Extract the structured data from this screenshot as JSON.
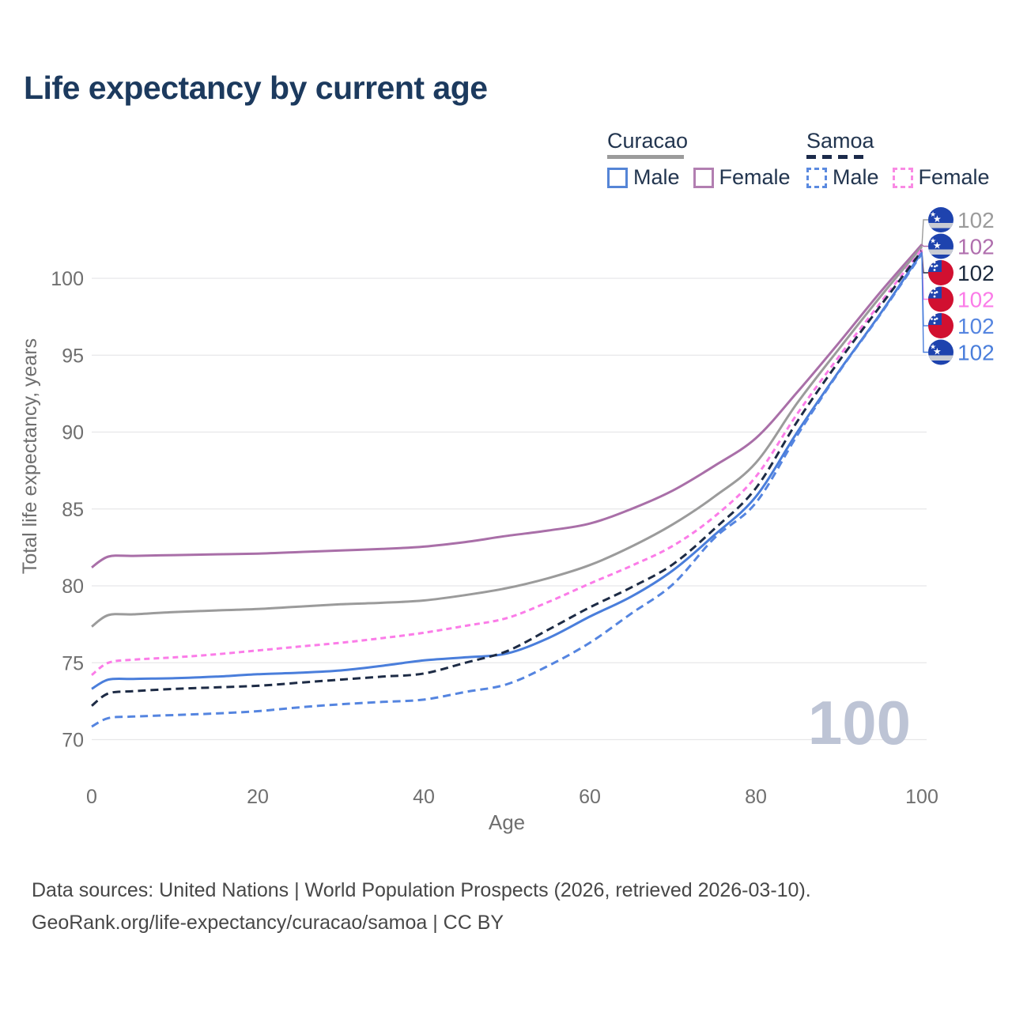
{
  "title": "Life expectancy by current age",
  "legend": {
    "groups": [
      {
        "id": "curacao",
        "label": "Curacao",
        "line_style": "solid",
        "line_color": "#9b9b9b",
        "items": [
          {
            "id": "curacao-male",
            "label": "Male",
            "color": "#5585d6",
            "style": "solid"
          },
          {
            "id": "curacao-female",
            "label": "Female",
            "color": "#b27fb1",
            "style": "solid"
          }
        ]
      },
      {
        "id": "samoa",
        "label": "Samoa",
        "line_style": "dashed",
        "line_color": "#1b2a4a",
        "items": [
          {
            "id": "samoa-male",
            "label": "Male",
            "color": "#5b8ae0",
            "style": "dashed"
          },
          {
            "id": "samoa-female",
            "label": "Female",
            "color": "#f98ae4",
            "style": "dashed"
          }
        ]
      }
    ]
  },
  "chart_data": {
    "type": "line",
    "title": "Life expectancy by current age",
    "xlabel": "Age",
    "ylabel": "Total life expectancy, years",
    "xlim": [
      0,
      100
    ],
    "ylim": [
      70,
      100
    ],
    "x_ticks": [
      0,
      20,
      40,
      60,
      80,
      100
    ],
    "y_ticks": [
      70,
      75,
      80,
      85,
      90,
      95,
      100
    ],
    "grid": "horizontal",
    "watermark": "100",
    "ages": [
      0,
      2,
      5,
      10,
      15,
      20,
      25,
      30,
      35,
      40,
      45,
      50,
      55,
      60,
      65,
      70,
      75,
      80,
      85,
      90,
      95,
      100
    ],
    "series": [
      {
        "id": "curacao-female",
        "name": "Curacao Female",
        "color": "#a96fa8",
        "dash": "solid",
        "flag": "curacao",
        "values": [
          81.2,
          81.9,
          81.95,
          82.0,
          82.05,
          82.1,
          82.2,
          82.3,
          82.4,
          82.55,
          82.85,
          83.25,
          83.6,
          84.05,
          85.0,
          86.2,
          87.8,
          89.6,
          92.6,
          95.8,
          99.1,
          102.2
        ]
      },
      {
        "id": "curacao-combined",
        "name": "Curacao",
        "color": "#9b9b9b",
        "dash": "solid",
        "flag": "curacao",
        "values": [
          77.35,
          78.1,
          78.15,
          78.3,
          78.4,
          78.5,
          78.65,
          78.8,
          78.9,
          79.05,
          79.4,
          79.85,
          80.5,
          81.35,
          82.55,
          84.0,
          85.8,
          88.0,
          91.9,
          95.4,
          98.8,
          102.05
        ]
      },
      {
        "id": "curacao-male",
        "name": "Curacao Male",
        "color": "#4a7edb",
        "dash": "solid",
        "flag": "curacao",
        "values": [
          73.3,
          73.9,
          73.95,
          74.0,
          74.1,
          74.25,
          74.35,
          74.5,
          74.8,
          75.15,
          75.35,
          75.6,
          76.6,
          78.0,
          79.3,
          81.0,
          83.3,
          85.8,
          90.0,
          93.95,
          97.7,
          101.7
        ]
      },
      {
        "id": "samoa-female",
        "name": "Samoa Female",
        "color": "#fb7ce8",
        "dash": "dashed",
        "flag": "samoa",
        "values": [
          74.2,
          75.0,
          75.2,
          75.35,
          75.55,
          75.8,
          76.05,
          76.3,
          76.6,
          76.95,
          77.4,
          77.9,
          78.95,
          80.15,
          81.3,
          82.6,
          84.5,
          87.1,
          91.2,
          94.9,
          98.4,
          101.9
        ]
      },
      {
        "id": "samoa-combined",
        "name": "Samoa",
        "color": "#1d2b45",
        "dash": "dashed",
        "flag": "samoa",
        "values": [
          72.2,
          73.0,
          73.15,
          73.3,
          73.4,
          73.5,
          73.7,
          73.9,
          74.1,
          74.3,
          75.0,
          75.75,
          77.15,
          78.6,
          79.9,
          81.4,
          83.7,
          86.35,
          90.7,
          94.6,
          98.2,
          101.8
        ]
      },
      {
        "id": "samoa-male",
        "name": "Samoa Male",
        "color": "#5585e0",
        "dash": "dashed",
        "flag": "samoa",
        "values": [
          70.85,
          71.4,
          71.5,
          71.6,
          71.7,
          71.85,
          72.1,
          72.3,
          72.45,
          72.6,
          73.1,
          73.6,
          74.8,
          76.3,
          78.2,
          80.1,
          83.1,
          85.4,
          89.8,
          93.9,
          97.65,
          101.6
        ]
      }
    ],
    "end_labels": [
      {
        "series": "curacao-combined",
        "flag": "curacao",
        "text": "102",
        "color": "#9b9b9b"
      },
      {
        "series": "curacao-female",
        "flag": "curacao",
        "text": "102",
        "color": "#b06fae"
      },
      {
        "series": "samoa-combined",
        "flag": "samoa",
        "text": "102",
        "color": "#1d2b3f"
      },
      {
        "series": "samoa-female",
        "flag": "samoa",
        "text": "102",
        "color": "#fb7ce8"
      },
      {
        "series": "samoa-male",
        "flag": "samoa",
        "text": "102",
        "color": "#5585e0"
      },
      {
        "series": "curacao-male",
        "flag": "curacao",
        "text": "102",
        "color": "#4a7edb"
      }
    ],
    "flag_colors": {
      "curacao_blue": "#1e43ae",
      "curacao_stripe": "#c9ccd3",
      "samoa_red": "#d11030",
      "samoa_canton": "#1e43ae",
      "star": "#ffffff"
    },
    "colors": {
      "grid": "#e7e7e9",
      "axis_text": "#6f6f6f",
      "watermark": "#bdc4d5"
    }
  },
  "footer": {
    "line1": "Data sources: United Nations | World Population Prospects (2026, retrieved 2026-03-10).",
    "line2": "GeoRank.org/life-expectancy/curacao/samoa | CC BY"
  }
}
